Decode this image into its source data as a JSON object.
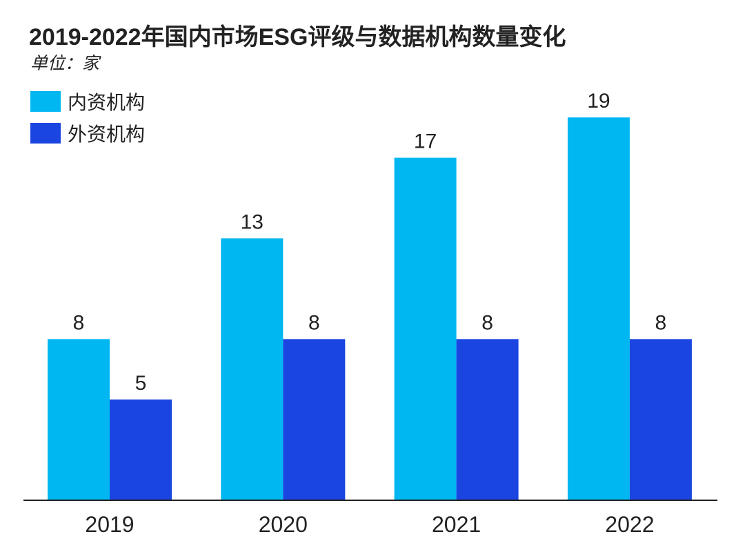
{
  "title": "2019-2022年国内市场ESG评级与数据机构数量变化",
  "unit": "单位：家",
  "colors": {
    "domestic": "#00B7F1",
    "foreign": "#1B45E1",
    "axis": "#222222",
    "text": "#222222"
  },
  "chart_data": {
    "type": "bar",
    "title": "2019-2022年国内市场ESG评级与数据机构数量变化",
    "unit": "单位：家",
    "xlabel": "",
    "ylabel": "",
    "ylim": [
      0,
      20
    ],
    "grid": false,
    "legend_position": "top-left",
    "categories": [
      "2019",
      "2020",
      "2021",
      "2022"
    ],
    "series": [
      {
        "name": "内资机构",
        "color": "#00B7F1",
        "values": [
          8,
          13,
          17,
          19
        ]
      },
      {
        "name": "外资机构",
        "color": "#1B45E1",
        "values": [
          5,
          8,
          8,
          8
        ]
      }
    ]
  }
}
